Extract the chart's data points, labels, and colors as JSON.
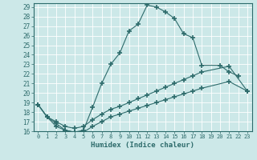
{
  "xlabel": "Humidex (Indice chaleur)",
  "bg_color": "#cce8e8",
  "grid_color": "#ffffff",
  "line_color": "#2d6b6b",
  "xlim": [
    -0.5,
    23.5
  ],
  "ylim": [
    16,
    29.4
  ],
  "xticks": [
    0,
    1,
    2,
    3,
    4,
    5,
    6,
    7,
    8,
    9,
    10,
    11,
    12,
    13,
    14,
    15,
    16,
    17,
    18,
    19,
    20,
    21,
    22,
    23
  ],
  "yticks": [
    16,
    17,
    18,
    19,
    20,
    21,
    22,
    23,
    24,
    25,
    26,
    27,
    28,
    29
  ],
  "line1_x": [
    0,
    1,
    2,
    3,
    4,
    5,
    6,
    7,
    8,
    9,
    10,
    11,
    12,
    13,
    14,
    15,
    16,
    17,
    18,
    20,
    21,
    22
  ],
  "line1_y": [
    18.8,
    17.5,
    16.5,
    16.1,
    15.9,
    16.1,
    18.5,
    21.0,
    23.0,
    24.2,
    26.5,
    27.2,
    29.2,
    29.0,
    28.5,
    27.8,
    26.2,
    25.8,
    22.9,
    22.9,
    22.2,
    21.8
  ],
  "line2_x": [
    0,
    1,
    2,
    3,
    4,
    5,
    6,
    7,
    8,
    9,
    10,
    11,
    12,
    13,
    14,
    15,
    16,
    17,
    18,
    21,
    23
  ],
  "line2_y": [
    18.8,
    17.5,
    17.0,
    16.5,
    16.3,
    16.5,
    17.2,
    17.8,
    18.3,
    18.6,
    19.0,
    19.4,
    19.8,
    20.2,
    20.6,
    21.0,
    21.4,
    21.8,
    22.2,
    22.8,
    20.2
  ],
  "line3_x": [
    0,
    1,
    2,
    3,
    4,
    5,
    6,
    7,
    8,
    9,
    10,
    11,
    12,
    13,
    14,
    15,
    16,
    17,
    18,
    21,
    23
  ],
  "line3_y": [
    18.8,
    17.5,
    16.8,
    16.1,
    15.9,
    15.9,
    16.5,
    17.0,
    17.5,
    17.8,
    18.1,
    18.4,
    18.7,
    19.0,
    19.3,
    19.6,
    19.9,
    20.2,
    20.5,
    21.2,
    20.2
  ]
}
